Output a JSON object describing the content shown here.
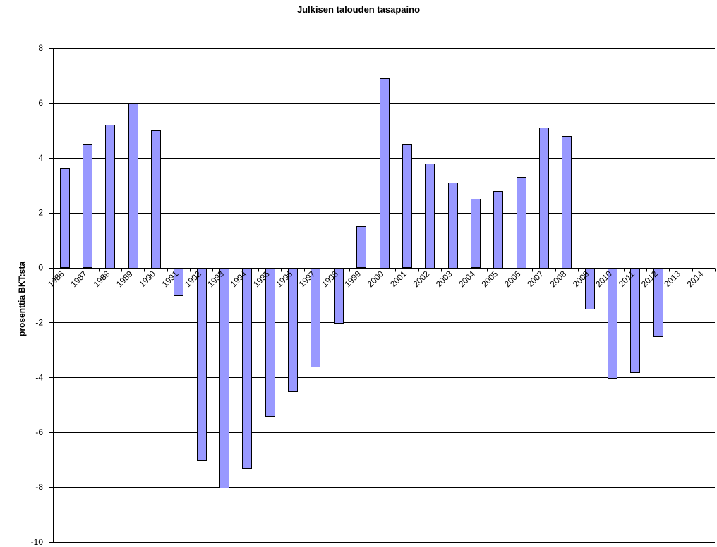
{
  "chart_data": {
    "type": "bar",
    "title": "Julkisen talouden tasapaino",
    "xlabel": "",
    "ylabel": "prosenttia BKT:sta",
    "categories": [
      "1986",
      "1987",
      "1988",
      "1989",
      "1990",
      "1991",
      "1992",
      "1993",
      "1994",
      "1995",
      "1996",
      "1997",
      "1998",
      "1999",
      "2000",
      "2001",
      "2002",
      "2003",
      "2004",
      "2005",
      "2006",
      "2007",
      "2008",
      "2009",
      "2010",
      "2011",
      "2012",
      "2013",
      "2014"
    ],
    "series": [
      {
        "values": [
          3.6,
          4.5,
          5.2,
          6.0,
          5.0,
          -1.0,
          -7.0,
          -8.0,
          -7.3,
          -5.4,
          -4.5,
          -3.6,
          -2.0,
          1.5,
          6.9,
          4.5,
          3.8,
          3.1,
          2.5,
          2.8,
          3.3,
          5.1,
          4.8,
          -1.5,
          -4.0,
          -3.8,
          -2.5,
          null,
          null
        ]
      }
    ],
    "ylim": [
      -10,
      8
    ],
    "yticks": [
      -10,
      -8,
      -6,
      -4,
      -2,
      0,
      2,
      4,
      6,
      8
    ],
    "grid": true,
    "legend": "none",
    "colors": {
      "bar_fill": "#9999ff",
      "bar_stroke": "#000000",
      "gridline": "#000000",
      "background": "#ffffff"
    }
  }
}
